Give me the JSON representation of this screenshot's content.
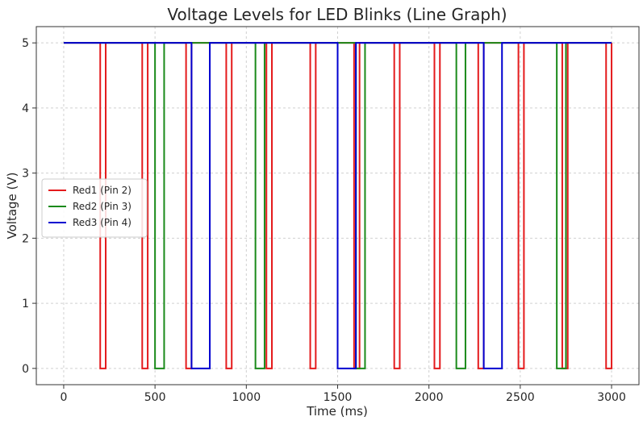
{
  "chart_data": {
    "type": "line",
    "title": "Voltage Levels for LED Blinks (Line Graph)",
    "xlabel": "Time (ms)",
    "ylabel": "Voltage (V)",
    "xlim": [
      -150,
      3150
    ],
    "ylim": [
      -0.25,
      5.25
    ],
    "xticks": [
      0,
      500,
      1000,
      1500,
      2000,
      2500,
      3000
    ],
    "yticks": [
      0,
      1,
      2,
      3,
      4,
      5
    ],
    "grid": true,
    "legend_position": "center-left",
    "series": [
      {
        "name": "Red1 (Pin 2)",
        "color": "#e41a1c",
        "high": 5,
        "low": 0,
        "low_intervals": [
          [
            200,
            230
          ],
          [
            430,
            460
          ],
          [
            670,
            700
          ],
          [
            890,
            920
          ],
          [
            1110,
            1140
          ],
          [
            1350,
            1380
          ],
          [
            1590,
            1620
          ],
          [
            1810,
            1840
          ],
          [
            2030,
            2060
          ],
          [
            2270,
            2300
          ],
          [
            2490,
            2520
          ],
          [
            2730,
            2760
          ],
          [
            2970,
            3000
          ]
        ],
        "x_range": [
          0,
          3000
        ]
      },
      {
        "name": "Red2 (Pin 3)",
        "color": "#1a8a1a",
        "high": 5,
        "low": 0,
        "low_intervals": [
          [
            500,
            550
          ],
          [
            1050,
            1100
          ],
          [
            1600,
            1650
          ],
          [
            2150,
            2200
          ],
          [
            2700,
            2750
          ]
        ],
        "x_range": [
          0,
          3000
        ]
      },
      {
        "name": "Red3 (Pin 4)",
        "color": "#0000d0",
        "high": 5,
        "low": 0,
        "low_intervals": [
          [
            700,
            800
          ],
          [
            1500,
            1600
          ],
          [
            2300,
            2400
          ]
        ],
        "x_range": [
          0,
          3000
        ]
      }
    ]
  }
}
